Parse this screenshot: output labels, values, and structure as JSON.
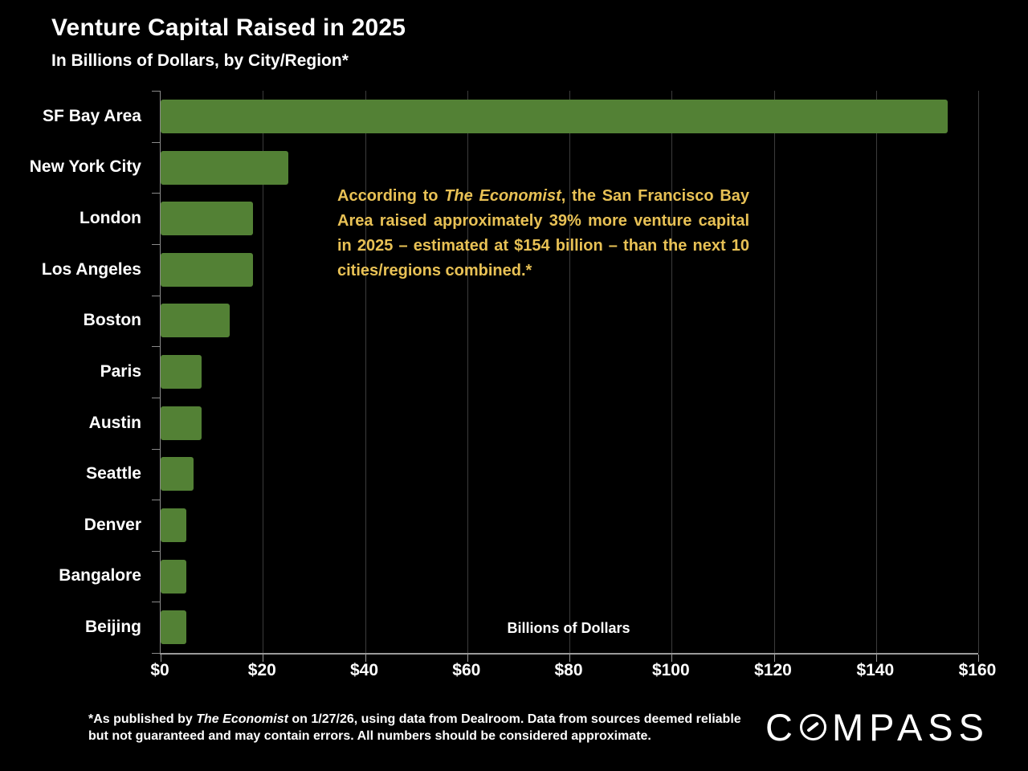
{
  "title": "Venture Capital Raised in 2025",
  "subtitle": "In Billions of Dollars, by City/Region*",
  "annotation": {
    "part1": "According to ",
    "source_italic": "The Economist",
    "part2": ", the San Francisco Bay Area raised approximately 39% more venture capital in 2025 – estimated at $154 billion – than the next 10 cities/regions combined.*"
  },
  "footnote": {
    "part1": "*As published by ",
    "source_italic": "The Economist",
    "part2": " on 1/27/26, using data from Dealroom. Data from sources deemed reliable but not guaranteed and may contain errors. All numbers should be considered approximate."
  },
  "logo": {
    "part1": "C",
    "part2": "MPASS"
  },
  "colors": {
    "background": "#000000",
    "bar": "#538135",
    "accent_text": "#e8c155",
    "gridline": "#3c3c3c",
    "axis": "#9a9a9a",
    "text": "#ffffff"
  },
  "chart_data": {
    "type": "bar",
    "orientation": "horizontal",
    "title": "Venture Capital Raised in 2025",
    "subtitle": "In Billions of Dollars, by City/Region*",
    "xlabel": "Billions of Dollars",
    "categories": [
      "SF Bay Area",
      "New York City",
      "London",
      "Los Angeles",
      "Boston",
      "Paris",
      "Austin",
      "Seattle",
      "Denver",
      "Bangalore",
      "Beijing"
    ],
    "values": [
      154,
      25,
      18,
      18,
      13.5,
      8,
      8,
      6.5,
      5,
      5,
      5
    ],
    "xlim": [
      0,
      160
    ],
    "x_ticks": [
      "$0",
      "$20",
      "$40",
      "$60",
      "$80",
      "$100",
      "$120",
      "$140",
      "$160"
    ],
    "x_tick_values": [
      0,
      20,
      40,
      60,
      80,
      100,
      120,
      140,
      160
    ],
    "grid": true,
    "legend": false,
    "bar_color": "#538135"
  }
}
